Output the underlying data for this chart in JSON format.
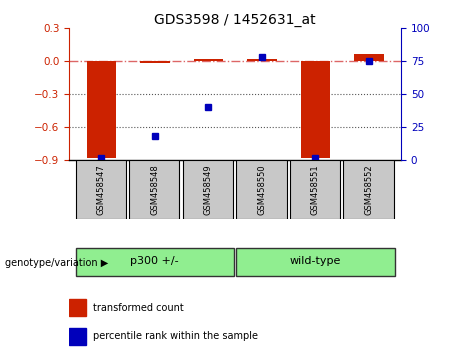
{
  "title": "GDS3598 / 1452631_at",
  "samples": [
    "GSM458547",
    "GSM458548",
    "GSM458549",
    "GSM458550",
    "GSM458551",
    "GSM458552"
  ],
  "red_values": [
    -0.88,
    -0.02,
    0.02,
    0.02,
    -0.88,
    0.07
  ],
  "blue_values": [
    1,
    18,
    40,
    78,
    1,
    75
  ],
  "ylim_left": [
    -0.9,
    0.3
  ],
  "ylim_right": [
    0,
    100
  ],
  "yticks_left": [
    0.3,
    0.0,
    -0.3,
    -0.6,
    -0.9
  ],
  "yticks_right": [
    100,
    75,
    50,
    25,
    0
  ],
  "group1_label": "p300 +/-",
  "group1_indices": [
    0,
    1,
    2
  ],
  "group2_label": "wild-type",
  "group2_indices": [
    3,
    4,
    5
  ],
  "group_color": "#90EE90",
  "group_label": "genotype/variation",
  "legend_red": "transformed count",
  "legend_blue": "percentile rank within the sample",
  "red_color": "#CC2200",
  "blue_color": "#0000BB",
  "hline_color": "#DD6666",
  "dotline_color": "#555555",
  "bg_color": "#FFFFFF",
  "sample_bg": "#C8C8C8",
  "bar_width": 0.55
}
